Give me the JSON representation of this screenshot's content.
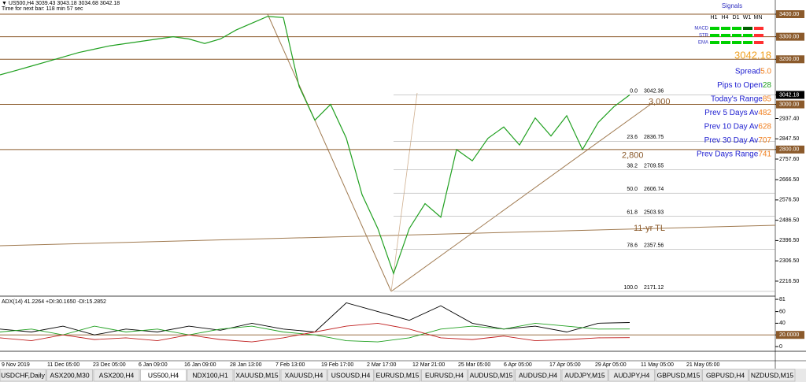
{
  "header": {
    "symbol_line": "▼ US500,H4  3039.43 3043.18 3034.68 3042.18",
    "timer": "Time for next bar: 118 min 57 sec"
  },
  "chart": {
    "price_axis": [
      {
        "value": 3400,
        "label": "3400.00"
      },
      {
        "value": 3300,
        "label": "3300.00"
      },
      {
        "value": 3200,
        "label": "3200.00"
      },
      {
        "value": 3042.18,
        "label": "3042.18"
      },
      {
        "value": 3000,
        "label": "3000.00"
      },
      {
        "value": 2937.4,
        "label": "2937.40"
      },
      {
        "value": 2847.5,
        "label": "2847.50"
      },
      {
        "value": 2800,
        "label": "2800.00"
      },
      {
        "value": 2757.6,
        "label": "2757.60"
      },
      {
        "value": 2666.5,
        "label": "2666.50"
      },
      {
        "value": 2576.5,
        "label": "2576.50"
      },
      {
        "value": 2486.5,
        "label": "2486.50"
      },
      {
        "value": 2396.5,
        "label": "2396.50"
      },
      {
        "value": 2306.5,
        "label": "2306.50"
      },
      {
        "value": 2216.5,
        "label": "2216.50"
      }
    ],
    "levels": [
      3400,
      3300,
      3200,
      3000,
      2800
    ],
    "level_notes": [
      {
        "text": "3,000",
        "value": 3000
      },
      {
        "text": "2,800",
        "value": 2800
      },
      {
        "text": "11-yr TL",
        "value": 2440
      }
    ],
    "fib": [
      {
        "ratio": "0.0",
        "price": 3042.36
      },
      {
        "ratio": "23.6",
        "price": 2836.75
      },
      {
        "ratio": "38.2",
        "price": 2709.55
      },
      {
        "ratio": "50.0",
        "price": 2606.74
      },
      {
        "ratio": "61.8",
        "price": 2503.93
      },
      {
        "ratio": "78.6",
        "price": 2357.56
      },
      {
        "ratio": "100.0",
        "price": 2171.12
      }
    ],
    "closes": [
      3131,
      3150,
      3170,
      3190,
      3210,
      3230,
      3245,
      3260,
      3270,
      3280,
      3290,
      3300,
      3290,
      3270,
      3290,
      3330,
      3360,
      3390,
      3385,
      3080,
      2930,
      3000,
      2850,
      2600,
      2450,
      2250,
      2450,
      2560,
      2500,
      2800,
      2750,
      2850,
      2900,
      2820,
      2940,
      2860,
      2950,
      2800,
      2920,
      2990,
      3042
    ],
    "dates": [
      "9 Nov 2019",
      "11 Dec 05:00",
      "23 Dec 05:00",
      "6 Jan 09:00",
      "16 Jan 09:00",
      "28 Jan 13:00",
      "7 Feb 13:00",
      "19 Feb 17:00",
      "2 Mar 17:00",
      "12 Mar 21:00",
      "25 Mar 05:00",
      "6 Apr 05:00",
      "17 Apr 05:00",
      "29 Apr 05:00",
      "11 May 05:00",
      "21 May 05:00"
    ]
  },
  "indicator": {
    "title": "ADX(14) 41.2264 +DI:30.1650 -DI:15.2852",
    "axis": [
      {
        "value": 81,
        "label": "81"
      },
      {
        "value": 60,
        "label": "60"
      },
      {
        "value": 40,
        "label": "40"
      },
      {
        "value": 20,
        "label": "20.0000"
      },
      {
        "value": 0,
        "label": "0"
      }
    ],
    "adx": [
      30,
      25,
      35,
      20,
      30,
      25,
      35,
      28,
      40,
      30,
      25,
      75,
      60,
      45,
      70,
      40,
      30,
      35,
      25,
      40,
      41.2264
    ],
    "plus_di": [
      25,
      30,
      20,
      35,
      25,
      30,
      20,
      30,
      35,
      25,
      20,
      10,
      8,
      15,
      30,
      35,
      30,
      40,
      35,
      30,
      30.165
    ],
    "minus_di": [
      15,
      10,
      20,
      12,
      15,
      10,
      20,
      12,
      8,
      15,
      25,
      35,
      40,
      30,
      15,
      12,
      18,
      10,
      12,
      15,
      15.2852
    ]
  },
  "signals": {
    "title": "Signals",
    "periods": [
      "H1",
      "H4",
      "D1",
      "W1",
      "MN"
    ],
    "rows": [
      {
        "name": "MACD",
        "colors": [
          "#00d000",
          "#00d000",
          "#00d000",
          "#006000",
          "#ff3030"
        ]
      },
      {
        "name": "STR",
        "colors": [
          "#00d000",
          "#00d000",
          "#00d000",
          "#00d000",
          "#ff3030"
        ]
      },
      {
        "name": "EMA",
        "colors": [
          "#00d000",
          "#00d000",
          "#00d000",
          "#00d000",
          "#ff3030"
        ]
      }
    ],
    "price": "3042.18",
    "stats": [
      {
        "label": "Spread",
        "value": "5.0"
      },
      {
        "label": "Pips to Open",
        "value": 28
      },
      {
        "label": "Today's Range",
        "value": 85
      },
      {
        "label": "Prev 5 Days Av",
        "value": 482
      },
      {
        "label": "Prev 10 Day Av",
        "value": 628
      },
      {
        "label": "Prev 30 Day Av",
        "value": 707
      },
      {
        "label": "Prev Days Range",
        "value": 741
      }
    ]
  },
  "tabs": [
    "USDCHF,Daily",
    "ASX200,M30",
    "ASX200,H4",
    "US500,H4",
    "NDX100,H1",
    "XAUUSD,M15",
    "XAUUSD,H4",
    "USOUSD,H4",
    "EURUSD,M15",
    "EURUSD,H4",
    "AUDUSD,M15",
    "AUDUSD,H4",
    "AUDJPY,M15",
    "AUDJPY,H4",
    "GBPUSD,M15",
    "GBPUSD,H4",
    "NZDUSD,M15"
  ],
  "active_tab": 3
}
